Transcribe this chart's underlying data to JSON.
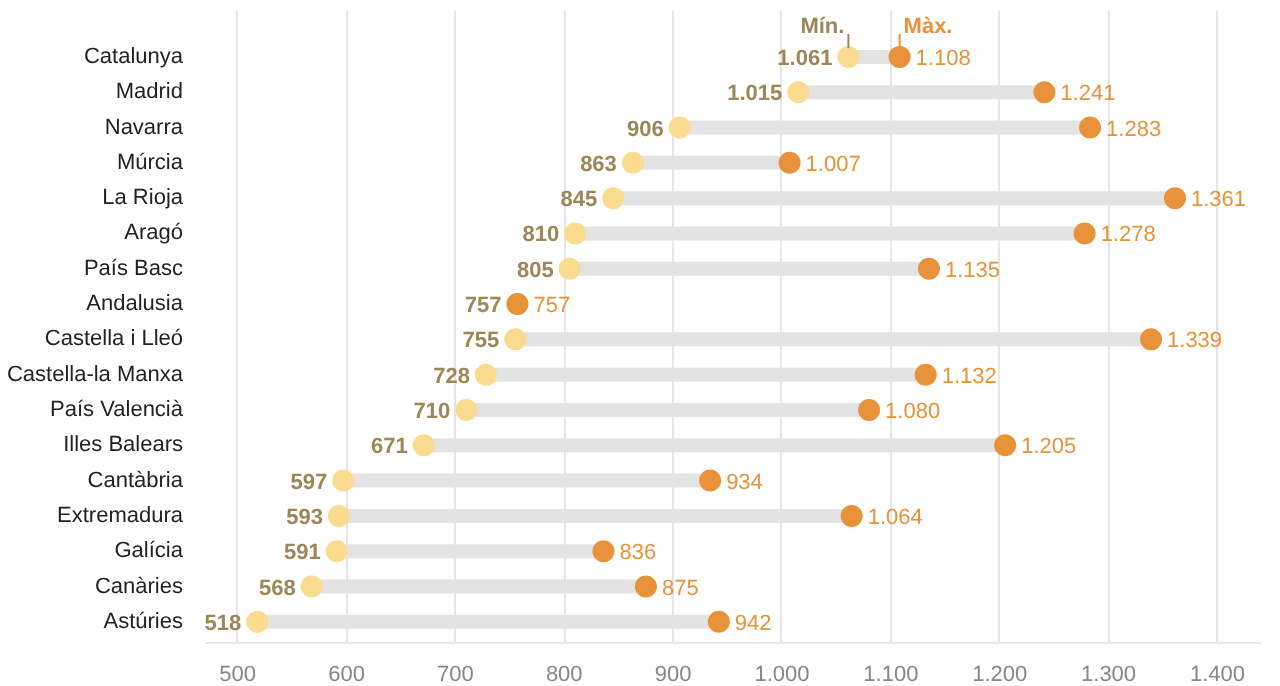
{
  "chart_data": {
    "type": "scatter",
    "orientation": "horizontal",
    "categories": [
      "Catalunya",
      "Madrid",
      "Navarra",
      "Múrcia",
      "La Rioja",
      "Aragó",
      "País Basc",
      "Andalusia",
      "Castella i Lleó",
      "Castella-la Manxa",
      "País Valencià",
      "Illes Balears",
      "Cantàbria",
      "Extremadura",
      "Galícia",
      "Canàries",
      "Astúries"
    ],
    "series": [
      {
        "name": "Mín.",
        "color": "#fbdb8f",
        "values": [
          1061,
          1015,
          906,
          863,
          845,
          810,
          805,
          757,
          755,
          728,
          710,
          671,
          597,
          593,
          591,
          568,
          518
        ],
        "value_labels": [
          "1.061",
          "1.015",
          "906",
          "863",
          "845",
          "810",
          "805",
          "757",
          "755",
          "728",
          "710",
          "671",
          "597",
          "593",
          "591",
          "568",
          "518"
        ]
      },
      {
        "name": "Màx.",
        "color": "#e8923a",
        "values": [
          1108,
          1241,
          1283,
          1007,
          1361,
          1278,
          1135,
          757,
          1339,
          1132,
          1080,
          1205,
          934,
          1064,
          836,
          875,
          942
        ],
        "value_labels": [
          "1.108",
          "1.241",
          "1.283",
          "1.007",
          "1.361",
          "1.278",
          "1.135",
          "757",
          "1.339",
          "1.132",
          "1.080",
          "1.205",
          "934",
          "1.064",
          "836",
          "875",
          "942"
        ]
      }
    ],
    "xlim": [
      470,
      1440
    ],
    "xticks": [
      500,
      600,
      700,
      800,
      900,
      {
        "value": 1000,
        "label": "1.000"
      },
      {
        "value": 1100,
        "label": "1.100"
      },
      {
        "value": 1200,
        "label": "1.200"
      },
      {
        "value": 1300,
        "label": "1.300"
      },
      {
        "value": 1400,
        "label": "1.400"
      }
    ],
    "grid": "x",
    "marker": "circle"
  }
}
